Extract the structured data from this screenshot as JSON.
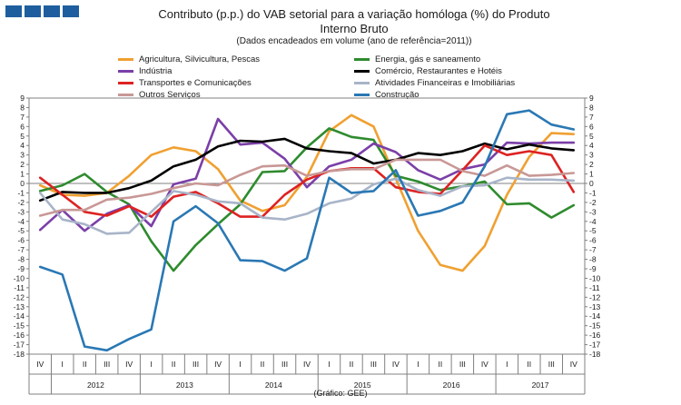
{
  "title_line1": "Contributo (p.p.) do VAB setorial para a variação homóloga (%) do Produto",
  "title_line2": "Interno Bruto",
  "subtitle": "(Dados encadeados em volume (ano de referência=2011))",
  "source": "(Gráfico: GEE)",
  "chart_data": {
    "type": "line",
    "ylim": [
      -18,
      9
    ],
    "yticks": [
      9,
      8,
      7,
      6,
      5,
      4,
      3,
      2,
      1,
      0,
      -1,
      -2,
      -3,
      -4,
      -5,
      -6,
      -7,
      -8,
      -9,
      -10,
      -11,
      -12,
      -13,
      -14,
      -15,
      -16,
      -17,
      -18
    ],
    "quarters": [
      "IV",
      "I",
      "II",
      "III",
      "IV",
      "I",
      "II",
      "III",
      "IV",
      "I",
      "II",
      "III",
      "IV",
      "I",
      "II",
      "III",
      "IV",
      "I",
      "II",
      "III",
      "IV",
      "I",
      "II",
      "III",
      "IV"
    ],
    "years": [
      {
        "label": "2012",
        "start": 1,
        "end": 4
      },
      {
        "label": "2013",
        "start": 5,
        "end": 8
      },
      {
        "label": "2014",
        "start": 9,
        "end": 12
      },
      {
        "label": "2015",
        "start": 13,
        "end": 16
      },
      {
        "label": "2016",
        "start": 17,
        "end": 20
      },
      {
        "label": "2017",
        "start": 21,
        "end": 24
      }
    ],
    "series": [
      {
        "name": "Agricultura, Silvicultura, Pescas",
        "color": "#f0a030",
        "values": [
          -0.2,
          -1.2,
          -1.3,
          -1.0,
          0.8,
          3.0,
          3.8,
          3.4,
          1.5,
          -1.8,
          -2.9,
          -2.3,
          0.7,
          5.5,
          7.2,
          6.0,
          0.5,
          -5.0,
          -8.6,
          -9.2,
          -6.6,
          -1.2,
          2.8,
          5.3,
          5.2
        ]
      },
      {
        "name": "Energia, gás e saneamento",
        "color": "#2e8b2e",
        "values": [
          -0.8,
          -0.2,
          1.0,
          -0.9,
          -2.2,
          -6.1,
          -9.2,
          -6.5,
          -4.3,
          -2.2,
          1.2,
          1.3,
          3.8,
          5.8,
          4.9,
          4.6,
          0.8,
          0.2,
          -0.7,
          -0.3,
          0.2,
          -2.2,
          -2.1,
          -3.6,
          -2.3
        ]
      },
      {
        "name": "Indústria",
        "color": "#7b3fa8",
        "values": [
          -4.9,
          -2.8,
          -5.0,
          -3.2,
          -2.3,
          -4.5,
          -0.1,
          0.5,
          6.8,
          4.1,
          4.3,
          2.6,
          -0.4,
          1.8,
          2.5,
          4.2,
          3.3,
          1.4,
          0.4,
          1.5,
          2.0,
          4.3,
          4.2,
          4.3,
          4.3
        ]
      },
      {
        "name": "Comércio, Restaurantes e Hotéis",
        "color": "#000000",
        "values": [
          -1.8,
          -0.9,
          -1.0,
          -1.0,
          -0.5,
          0.3,
          1.8,
          2.5,
          3.9,
          4.5,
          4.4,
          4.7,
          3.7,
          3.4,
          3.2,
          2.1,
          2.5,
          3.2,
          3.0,
          3.4,
          4.2,
          3.6,
          4.1,
          3.7,
          3.5
        ]
      },
      {
        "name": "Transportes e Comunicações",
        "color": "#dd2222",
        "values": [
          0.6,
          -1.2,
          -3.0,
          -3.4,
          -2.4,
          -3.5,
          -1.4,
          -0.9,
          -2.1,
          -3.5,
          -3.5,
          -1.2,
          0.4,
          1.3,
          1.6,
          1.6,
          -0.4,
          -0.9,
          -1.1,
          1.4,
          4.0,
          3.0,
          3.4,
          3.0,
          -0.9
        ]
      },
      {
        "name": "Atividades Financeiras e Imobiliárias",
        "color": "#a8b4c8",
        "values": [
          -1.0,
          -3.8,
          -4.3,
          -5.3,
          -5.2,
          -3.0,
          -0.8,
          -1.2,
          -1.9,
          -2.1,
          -3.6,
          -3.8,
          -3.2,
          -2.1,
          -1.6,
          -0.1,
          0.5,
          -0.7,
          -1.3,
          -0.3,
          -0.2,
          0.6,
          0.4,
          0.4,
          0.3
        ]
      },
      {
        "name": "Outros Serviços",
        "color": "#c89896",
        "values": [
          -3.4,
          -2.8,
          -2.8,
          -1.7,
          -1.5,
          -1.1,
          -0.5,
          0.0,
          -0.2,
          0.9,
          1.8,
          1.9,
          0.8,
          1.3,
          1.5,
          1.5,
          2.5,
          2.5,
          2.5,
          1.3,
          0.8,
          1.9,
          0.8,
          0.9,
          1.1
        ]
      },
      {
        "name": "Construção",
        "color": "#2a78b4",
        "values": [
          -8.8,
          -9.6,
          -17.2,
          -17.6,
          -16.4,
          -15.4,
          -4.0,
          -2.4,
          -4.2,
          -8.1,
          -8.2,
          -9.2,
          -7.9,
          0.6,
          -1.0,
          -0.8,
          1.4,
          -3.4,
          -2.9,
          -2.0,
          1.8,
          7.3,
          7.7,
          6.2,
          5.7
        ]
      }
    ]
  }
}
